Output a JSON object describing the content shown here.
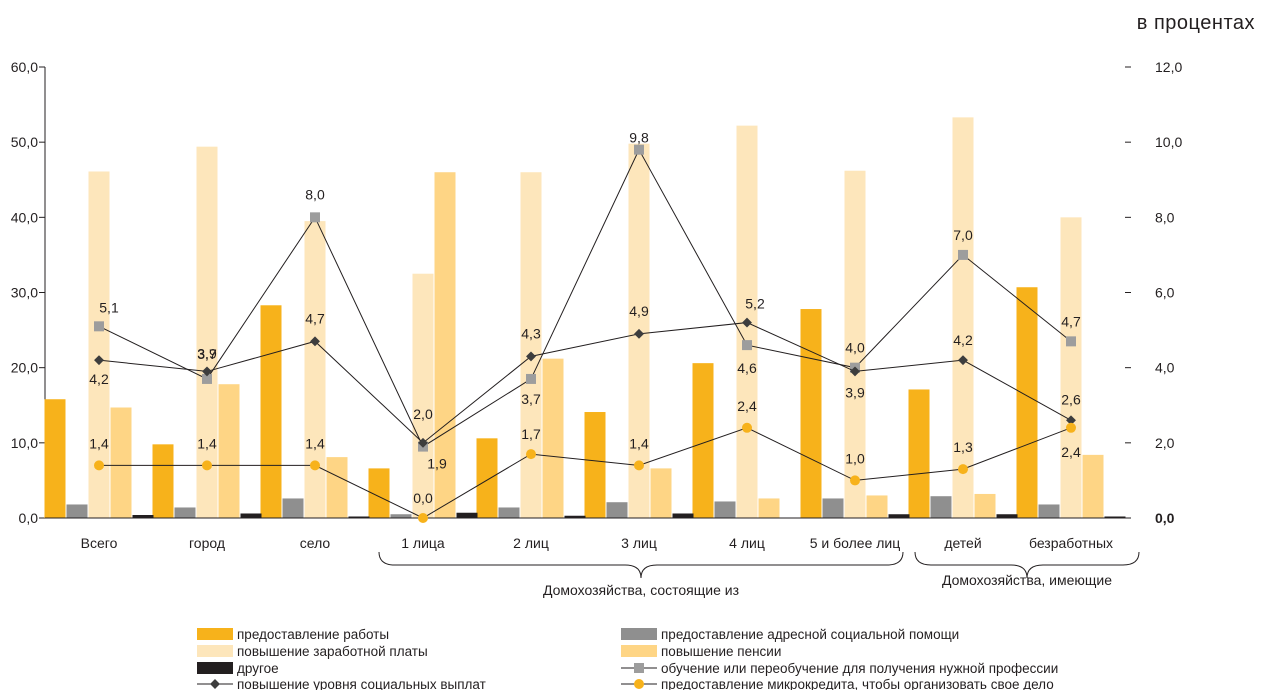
{
  "unit_label": "в процентах",
  "chart_data": {
    "type": "bar",
    "categories": [
      "Всего",
      "город",
      "село",
      "1 лица",
      "2 лиц",
      "3 лиц",
      "4 лиц",
      "5 и более лиц",
      "детей",
      "безработных"
    ],
    "group_labels": [
      "Домохозяйства, состоящие из",
      "Домохозяйства, имеющие"
    ],
    "y_left": {
      "min": 0,
      "max": 60,
      "ticks": [
        "0,0",
        "10,0",
        "20,0",
        "30,0",
        "40,0",
        "50,0",
        "60,0"
      ]
    },
    "y_right": {
      "min": 0,
      "max": 12,
      "ticks": [
        "0,0",
        "2,0",
        "4,0",
        "6,0",
        "8,0",
        "10,0",
        "12,0"
      ]
    },
    "bar_series": [
      {
        "name": "предоставление работы",
        "color": "#f7b21b",
        "values": [
          15.8,
          9.8,
          28.3,
          6.6,
          10.6,
          14.1,
          20.6,
          27.8,
          17.1,
          30.7
        ]
      },
      {
        "name": "предоставление адресной социальной помощи",
        "color": "#8f8f8f",
        "values": [
          1.8,
          1.4,
          2.6,
          0.5,
          1.4,
          2.1,
          2.2,
          2.6,
          2.9,
          1.8
        ]
      },
      {
        "name": "повышение заработной платы",
        "color": "#fde6bb",
        "values": [
          46.1,
          49.4,
          39.5,
          32.5,
          46.0,
          49.8,
          52.2,
          46.2,
          53.3,
          40.0
        ]
      },
      {
        "name": "повышение пенсии",
        "color": "#fed585",
        "values": [
          14.7,
          17.8,
          8.1,
          46.0,
          21.2,
          6.6,
          2.6,
          3.0,
          3.2,
          8.4
        ]
      },
      {
        "name": "другое",
        "color": "#231f20",
        "values": [
          0.4,
          0.6,
          0.2,
          0.7,
          0.3,
          0.6,
          0.0,
          0.5,
          0.5,
          0.2
        ]
      }
    ],
    "line_series": [
      {
        "name": "обучение или переобучение для получения нужной профессии",
        "color": "#9d9d9d",
        "marker": "square",
        "values": [
          5.1,
          3.7,
          8.0,
          1.9,
          3.7,
          9.8,
          4.6,
          4.0,
          7.0,
          4.7
        ],
        "labels": [
          "5,1",
          "3,7",
          "8,0",
          "1,9",
          "3,7",
          "9,8",
          "4,6",
          "4,0",
          "7,0",
          "4,7"
        ]
      },
      {
        "name": "повышение уровня социальных выплат",
        "color": "#3d3d3d",
        "marker": "diamond",
        "values": [
          4.2,
          3.9,
          4.7,
          2.0,
          4.3,
          4.9,
          5.2,
          3.9,
          4.2,
          2.6
        ],
        "labels": [
          "4,2",
          "3,9",
          "4,7",
          "2,0",
          "4,3",
          "4,9",
          "5,2",
          "3,9",
          "4,2",
          "2,6"
        ]
      },
      {
        "name": "предоставление микрокредита, чтобы организовать свое дело",
        "color": "#f7b21b",
        "marker": "circle",
        "values": [
          1.4,
          1.4,
          1.4,
          0.0,
          1.7,
          1.4,
          2.4,
          1.0,
          1.3,
          2.4
        ],
        "labels": [
          "1,4",
          "1,4",
          "1,4",
          "0,0",
          "1,7",
          "1,4",
          "2,4",
          "1,0",
          "1,3",
          "2,4"
        ]
      }
    ]
  }
}
